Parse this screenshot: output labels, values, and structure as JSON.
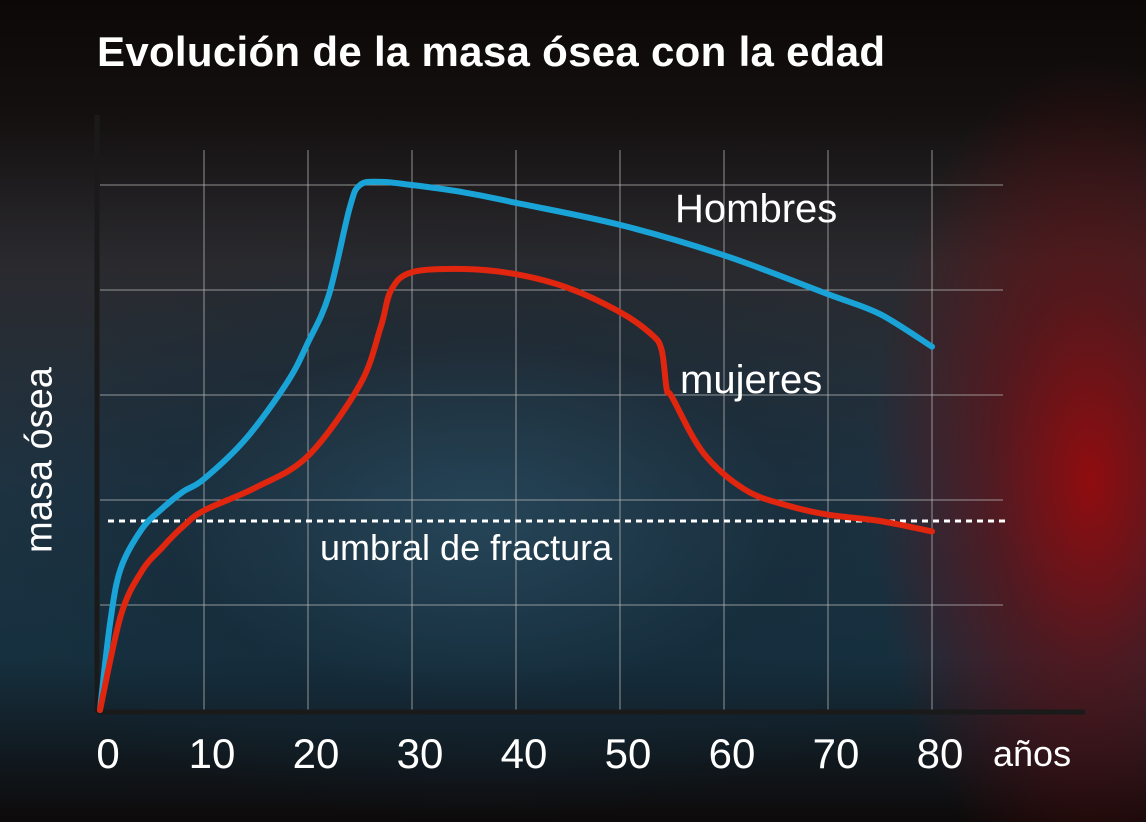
{
  "chart_data": {
    "type": "line",
    "title": "Evolución de la masa ósea con la edad",
    "xlabel": "años",
    "ylabel": "masa ósea",
    "xlim": [
      0,
      85
    ],
    "ylim": [
      0,
      5.3
    ],
    "xticks": [
      0,
      10,
      20,
      30,
      40,
      50,
      60,
      70,
      80
    ],
    "grid": true,
    "series": [
      {
        "name": "Hombres",
        "color": "#1aa3d6",
        "points": [
          [
            0,
            0
          ],
          [
            1,
            0.85
          ],
          [
            2,
            1.35
          ],
          [
            4,
            1.72
          ],
          [
            6,
            1.92
          ],
          [
            8,
            2.08
          ],
          [
            10,
            2.2
          ],
          [
            14,
            2.58
          ],
          [
            18,
            3.12
          ],
          [
            20,
            3.5
          ],
          [
            22,
            3.95
          ],
          [
            24,
            4.78
          ],
          [
            25,
            5.0
          ],
          [
            27,
            5.03
          ],
          [
            30,
            5.0
          ],
          [
            35,
            4.93
          ],
          [
            40,
            4.83
          ],
          [
            50,
            4.62
          ],
          [
            60,
            4.33
          ],
          [
            70,
            3.96
          ],
          [
            75,
            3.77
          ],
          [
            80,
            3.46
          ]
        ]
      },
      {
        "name": "mujeres",
        "color": "#e0260e",
        "points": [
          [
            0,
            0
          ],
          [
            2,
            0.9
          ],
          [
            4,
            1.32
          ],
          [
            6,
            1.55
          ],
          [
            8,
            1.75
          ],
          [
            10,
            1.9
          ],
          [
            15,
            2.12
          ],
          [
            20,
            2.42
          ],
          [
            25,
            3.1
          ],
          [
            27,
            3.65
          ],
          [
            28,
            4.0
          ],
          [
            30,
            4.17
          ],
          [
            35,
            4.2
          ],
          [
            40,
            4.15
          ],
          [
            45,
            4.02
          ],
          [
            50,
            3.79
          ],
          [
            53,
            3.58
          ],
          [
            54,
            3.43
          ],
          [
            54.5,
            3.05
          ],
          [
            55,
            2.98
          ],
          [
            58,
            2.45
          ],
          [
            62,
            2.1
          ],
          [
            66,
            1.95
          ],
          [
            70,
            1.86
          ],
          [
            75,
            1.8
          ],
          [
            80,
            1.7
          ]
        ]
      }
    ],
    "threshold": {
      "label": "umbral de fractura",
      "value": 1.8
    }
  }
}
